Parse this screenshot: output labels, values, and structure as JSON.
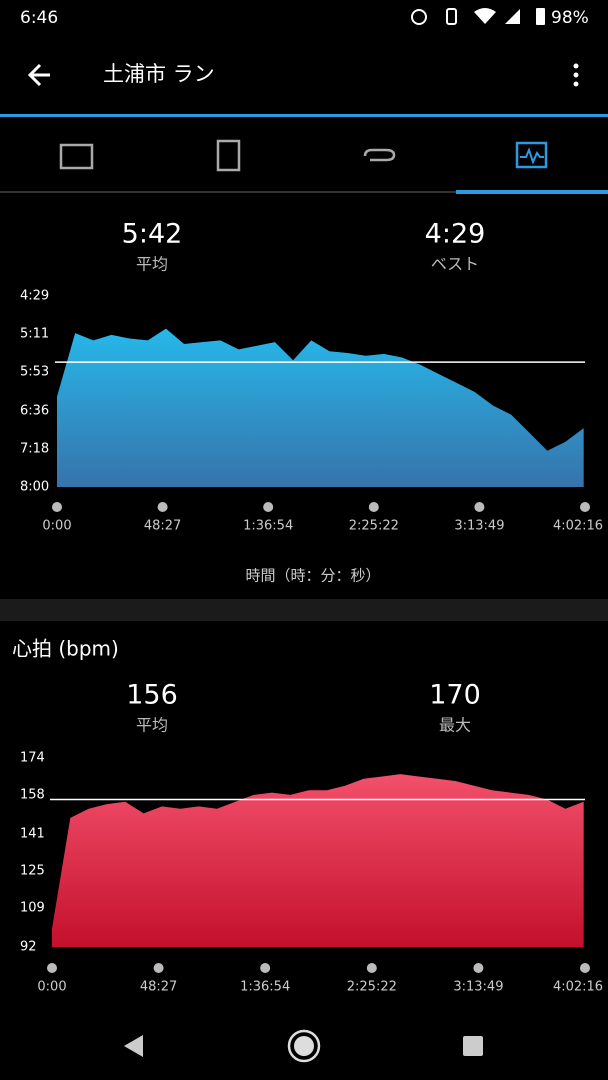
{
  "status_bar": {
    "time": "6:46",
    "battery": "98%"
  },
  "header": {
    "title": "土浦市 ラン"
  },
  "chart_data": [
    {
      "type": "area",
      "stats": [
        {
          "value": 342,
          "label": "5:42",
          "name": "平均"
        },
        {
          "value": 269,
          "label": "4:29",
          "name": "ベスト"
        }
      ],
      "x": [
        0,
        500,
        1000,
        1500,
        2000,
        2500,
        3000,
        3500,
        4000,
        4500,
        5000,
        5500,
        6000,
        6500,
        7000,
        7500,
        8000,
        8500,
        9000,
        9500,
        10000,
        10500,
        11000,
        11500,
        12000,
        12500,
        13000,
        13500,
        14000,
        14500
      ],
      "values": [
        380,
        310,
        318,
        312,
        316,
        318,
        305,
        322,
        320,
        318,
        328,
        324,
        320,
        340,
        318,
        330,
        332,
        335,
        333,
        337,
        345,
        355,
        365,
        375,
        390,
        400,
        420,
        440,
        430,
        415
      ],
      "xlim": [
        0,
        14536
      ],
      "xticks": [
        {
          "value": 0,
          "label": "0:00"
        },
        {
          "value": 2907,
          "label": "48:27"
        },
        {
          "value": 5814,
          "label": "1:36:54"
        },
        {
          "value": 8722,
          "label": "2:25:22"
        },
        {
          "value": 11629,
          "label": "3:13:49"
        },
        {
          "value": 14536,
          "label": "4:02:16"
        }
      ],
      "ylim": [
        480,
        269
      ],
      "yticks": [
        {
          "value": 269,
          "label": "4:29"
        },
        {
          "value": 311,
          "label": "5:11"
        },
        {
          "value": 353,
          "label": "5:53"
        },
        {
          "value": 396,
          "label": "6:36"
        },
        {
          "value": 438,
          "label": "7:18"
        },
        {
          "value": 480,
          "label": "8:00"
        }
      ],
      "xlabel": "時間（時：分：秒）",
      "colors": [
        "#27b8ea",
        "#3673ab"
      ]
    },
    {
      "type": "area",
      "title": "心拍 (bpm)",
      "stats": [
        {
          "value": 156,
          "name": "平均"
        },
        {
          "value": 170,
          "name": "最大"
        }
      ],
      "x": [
        0,
        500,
        1000,
        1500,
        2000,
        2500,
        3000,
        3500,
        4000,
        4500,
        5000,
        5500,
        6000,
        6500,
        7000,
        7500,
        8000,
        8500,
        9000,
        9500,
        10000,
        10500,
        11000,
        11500,
        12000,
        12500,
        13000,
        13500,
        14000,
        14500
      ],
      "values": [
        100,
        148,
        152,
        154,
        155,
        150,
        153,
        152,
        153,
        152,
        155,
        158,
        159,
        158,
        160,
        160,
        162,
        165,
        166,
        167,
        166,
        165,
        164,
        162,
        160,
        159,
        158,
        156,
        152,
        155
      ],
      "xlim": [
        0,
        14536
      ],
      "xticks": [
        {
          "value": 0,
          "label": "0:00"
        },
        {
          "value": 2907,
          "label": "48:27"
        },
        {
          "value": 5814,
          "label": "1:36:54"
        },
        {
          "value": 8722,
          "label": "2:25:22"
        },
        {
          "value": 11629,
          "label": "3:13:49"
        },
        {
          "value": 14536,
          "label": "4:02:16"
        }
      ],
      "ylim": [
        92,
        174
      ],
      "yticks": [
        92,
        109,
        125,
        141,
        158,
        174
      ],
      "colors": [
        "#f2506c",
        "#c4102c"
      ]
    }
  ]
}
